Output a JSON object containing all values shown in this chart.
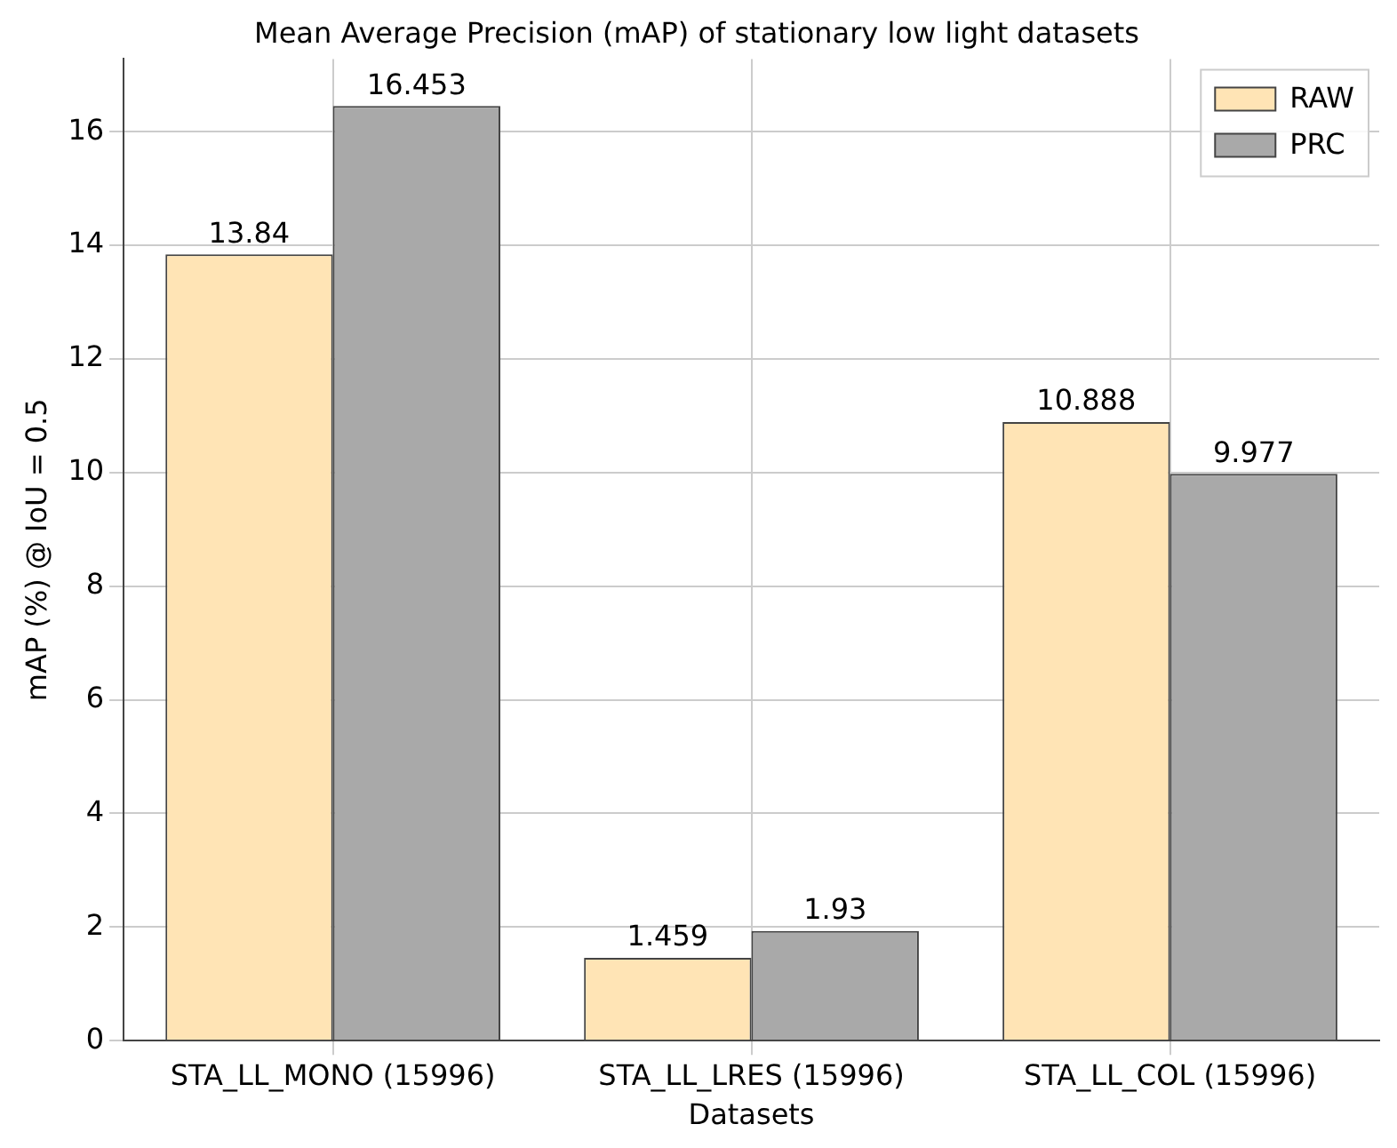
{
  "chart_data": {
    "type": "bar",
    "title": "Mean Average Precision (mAP) of stationary low light datasets",
    "xlabel": "Datasets",
    "ylabel": "mAP (%) @ IoU = 0.5",
    "categories": [
      "STA_LL_MONO (15996)",
      "STA_LL_LRES (15996)",
      "STA_LL_COL (15996)"
    ],
    "series": [
      {
        "name": "RAW",
        "color": "#ffe4b5",
        "values": [
          13.84,
          1.459,
          10.888
        ]
      },
      {
        "name": "PRC",
        "color": "#a9a9a9",
        "values": [
          16.453,
          1.93,
          9.977
        ]
      }
    ],
    "ylim": [
      0,
      17.28
    ],
    "yticks": [
      0,
      2,
      4,
      6,
      8,
      10,
      12,
      14,
      16
    ],
    "grid": true,
    "legend": "top right",
    "data_labels": true
  }
}
